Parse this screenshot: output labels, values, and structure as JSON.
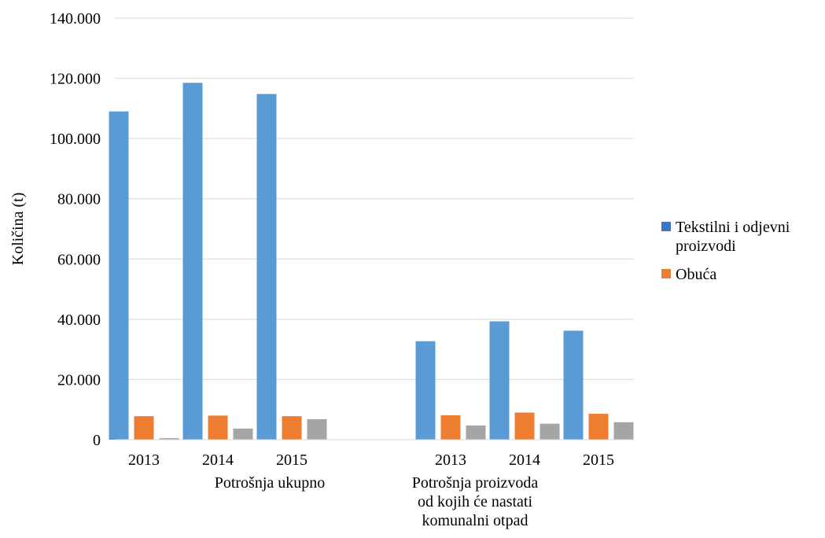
{
  "chart_data": {
    "type": "bar",
    "ylabel": "Količina (t)",
    "ylim": [
      0,
      140000
    ],
    "yticks": [
      0,
      20000,
      40000,
      60000,
      80000,
      100000,
      120000,
      140000
    ],
    "ytick_labels": [
      "0",
      "20.000",
      "40.000",
      "60.000",
      "80.000",
      "100.000",
      "120.000",
      "140.000"
    ],
    "grid": true,
    "legend_position": "right",
    "groups": [
      {
        "label_lines": [
          "Potrošnja ukupno"
        ],
        "categories": [
          "2013",
          "2014",
          "2015"
        ]
      },
      {
        "label_lines": [
          "Potrošnja proizvoda",
          "od kojih će nastati",
          "komunalni otpad"
        ],
        "categories": [
          "2013",
          "2014",
          "2015"
        ]
      }
    ],
    "series": [
      {
        "name_lines": [
          "Tekstilni i odjevni",
          "proizvodi"
        ],
        "color": "#5B9BD5",
        "legend_color": "#4472C4",
        "values": [
          109000,
          118500,
          114800,
          32700,
          39300,
          36200
        ]
      },
      {
        "name_lines": [
          "Obuća"
        ],
        "color": "#ED7D31",
        "legend_color": "#ED7D31",
        "values": [
          7800,
          8000,
          7800,
          8100,
          9000,
          8600
        ]
      },
      {
        "color": "#A5A5A5",
        "values": [
          500,
          3700,
          6800,
          4700,
          5300,
          5800
        ]
      }
    ]
  }
}
